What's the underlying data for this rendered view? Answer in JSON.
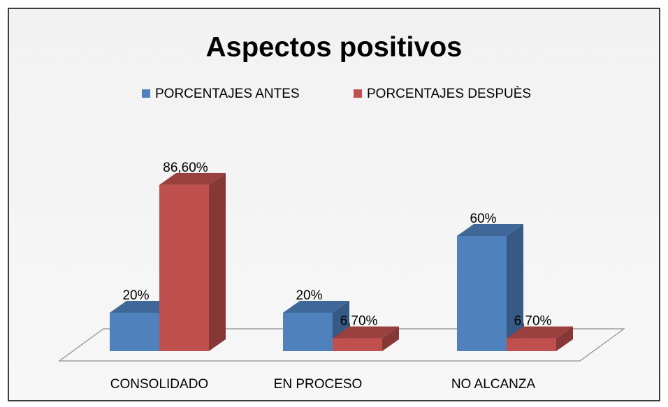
{
  "chart_data": {
    "type": "bar3d",
    "title": "Aspectos positivos",
    "categories": [
      "CONSOLIDADO",
      "EN PROCESO",
      "NO ALCANZA"
    ],
    "series": [
      {
        "name": "PORCENTAJES ANTES",
        "color": "#4f81bd",
        "values": [
          20,
          20,
          60
        ],
        "value_labels": [
          "20%",
          "20%",
          "60%"
        ]
      },
      {
        "name": "PORCENTAJES DESPUÈS",
        "color": "#c0504d",
        "values": [
          86.6,
          6.7,
          6.7
        ],
        "value_labels": [
          "86,60%",
          "6,70%",
          "6,70%"
        ]
      }
    ],
    "legend": "top"
  }
}
